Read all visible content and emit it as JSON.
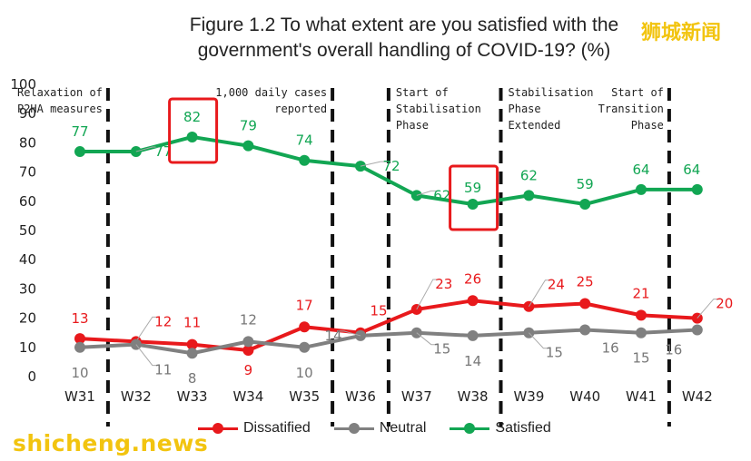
{
  "title_line1": "Figure 1.2 To what extent are you satisfied with the",
  "title_line2": "government's overall handling of COVID-19? (%)",
  "watermark_cn": "狮城新闻",
  "watermark_site": "shicheng.news",
  "chart_data": {
    "type": "line",
    "title": "Figure 1.2 To what extent are you satisfied with the government's overall handling of COVID-19? (%)",
    "categories": [
      "W31",
      "W32",
      "W33",
      "W34",
      "W35",
      "W36",
      "W37",
      "W38",
      "W39",
      "W40",
      "W41",
      "W42"
    ],
    "ylim": [
      0,
      100
    ],
    "yticks": [
      "0",
      "10",
      "20",
      "30",
      "40",
      "50",
      "60",
      "70",
      "80",
      "90",
      "100"
    ],
    "legend_position": "bottom",
    "series": [
      {
        "name": "Dissatified",
        "color": "#e8191c",
        "values": [
          13,
          12,
          11,
          9,
          17,
          15,
          23,
          26,
          24,
          25,
          21,
          20
        ]
      },
      {
        "name": "Neutral",
        "color": "#808080",
        "values": [
          10,
          11,
          8,
          12,
          10,
          14,
          15,
          14,
          15,
          16,
          15,
          16
        ]
      },
      {
        "name": "Satisfied",
        "color": "#12a653",
        "values": [
          77,
          77,
          82,
          79,
          74,
          72,
          62,
          59,
          62,
          59,
          64,
          64
        ]
      }
    ],
    "annotations": [
      {
        "lines": [
          "Relaxation of",
          "P2HA measures"
        ],
        "after": "W31"
      },
      {
        "lines": [
          "1,000 daily cases",
          "reported"
        ],
        "after": "W35"
      },
      {
        "lines": [
          "Start of",
          "Stabilisation",
          "Phase"
        ],
        "after": "W36"
      },
      {
        "lines": [
          "Stabilisation",
          "Phase",
          "Extended"
        ],
        "after": "W38"
      },
      {
        "lines": [
          "Start of",
          "Transition",
          "Phase"
        ],
        "after": "W41"
      }
    ],
    "highlighted": [
      {
        "series": "Satisfied",
        "category": "W33"
      },
      {
        "series": "Satisfied",
        "category": "W38"
      }
    ]
  }
}
